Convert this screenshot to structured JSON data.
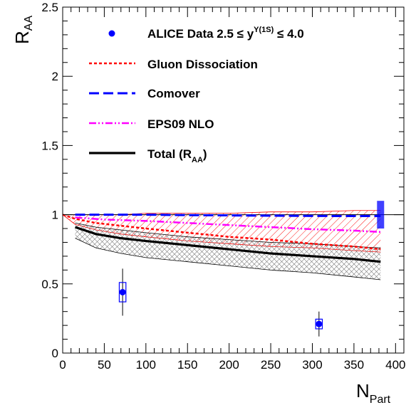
{
  "chart_data": {
    "type": "line",
    "xlabel": {
      "main": "N",
      "sub": "Part"
    },
    "ylabel": {
      "main": "R",
      "sub": "AA"
    },
    "xlim": [
      0,
      410
    ],
    "ylim": [
      0,
      2.5
    ],
    "xticks": [
      0,
      50,
      100,
      150,
      200,
      250,
      300,
      350,
      400
    ],
    "yticks": [
      0,
      0.5,
      1,
      1.5,
      2,
      2.5
    ],
    "ytick_labels": [
      "0",
      "0.5",
      "1",
      "1.5",
      "2",
      "2.5"
    ],
    "grid": false,
    "legend_position": "top-left",
    "reference_line": {
      "y": 1.0,
      "color": "#000000"
    },
    "legend": [
      {
        "key": "alice",
        "text": "ALICE Data 2.5 ≤ y",
        "sup": "Υ(1S)",
        "text_after": " ≤ 4.0",
        "color": "#0000ff",
        "style": "marker"
      },
      {
        "key": "gluon",
        "text": "Gluon Dissociation",
        "color": "#ff0000",
        "style": "dashed"
      },
      {
        "key": "comover",
        "text": "Comover",
        "color": "#0000ff",
        "style": "longdash"
      },
      {
        "key": "eps09",
        "text": "EPS09 NLO",
        "color": "#ff00ff",
        "style": "dashdotdot"
      },
      {
        "key": "total",
        "text": "Total (R",
        "sub": "AA",
        "text_after": ")",
        "color": "#000000",
        "style": "solid"
      }
    ],
    "data_points": {
      "name": "ALICE Data 2.5 ≤ y ≤ 4.0",
      "color": "#0000ff",
      "x": [
        72,
        308
      ],
      "y": [
        0.44,
        0.21
      ],
      "stat_err": [
        0.17,
        0.09
      ],
      "syst_err": [
        0.07,
        0.035
      ],
      "syst_width": [
        4,
        4
      ]
    },
    "global_uncertainty": {
      "x": 382,
      "y_low": 0.9,
      "y_high": 1.1,
      "color": "#0000ff"
    },
    "series": [
      {
        "key": "total",
        "color": "#000000",
        "dash": "",
        "width": 3.2,
        "x": [
          15,
          40,
          70,
          100,
          150,
          200,
          250,
          300,
          350,
          382
        ],
        "y": [
          0.91,
          0.86,
          0.83,
          0.81,
          0.78,
          0.75,
          0.72,
          0.7,
          0.68,
          0.66
        ]
      },
      {
        "key": "gluon",
        "color": "#ff0000",
        "dash": "4 3",
        "width": 2.5,
        "x": [
          0,
          15,
          40,
          70,
          100,
          150,
          200,
          250,
          300,
          350,
          382
        ],
        "y": [
          1.0,
          0.97,
          0.94,
          0.92,
          0.9,
          0.87,
          0.84,
          0.82,
          0.79,
          0.77,
          0.75
        ]
      },
      {
        "key": "comover",
        "color": "#0000ff",
        "dash": "14 6",
        "width": 3,
        "x": [
          15,
          50,
          100,
          150,
          200,
          250,
          300,
          350,
          382
        ],
        "y": [
          1.0,
          1.0,
          1.0,
          0.997,
          0.995,
          0.993,
          0.991,
          0.99,
          0.99
        ]
      },
      {
        "key": "eps09",
        "color": "#ff00ff",
        "dash": "10 3 2 3 2 3",
        "width": 2.5,
        "x": [
          15,
          50,
          100,
          150,
          200,
          250,
          300,
          350,
          382
        ],
        "y": [
          0.98,
          0.965,
          0.955,
          0.94,
          0.925,
          0.91,
          0.895,
          0.885,
          0.875
        ]
      }
    ],
    "bands": [
      {
        "key": "gluon-band",
        "color": "#ff0000",
        "pattern": "hatch",
        "x": [
          0,
          15,
          40,
          70,
          100,
          150,
          200,
          250,
          300,
          350,
          382
        ],
        "upper": [
          1.0,
          1.0,
          1.0,
          1.0,
          1.01,
          1.01,
          1.01,
          1.02,
          1.02,
          1.03,
          1.03
        ],
        "lower": [
          1.0,
          0.93,
          0.89,
          0.86,
          0.84,
          0.81,
          0.79,
          0.77,
          0.76,
          0.74,
          0.73
        ]
      },
      {
        "key": "total-band",
        "color": "#000000",
        "pattern": "crosshatch",
        "x": [
          15,
          40,
          70,
          100,
          150,
          200,
          250,
          300,
          350,
          382
        ],
        "upper": [
          0.94,
          0.91,
          0.89,
          0.87,
          0.84,
          0.82,
          0.8,
          0.79,
          0.77,
          0.76
        ],
        "lower": [
          0.83,
          0.76,
          0.72,
          0.69,
          0.66,
          0.63,
          0.6,
          0.58,
          0.55,
          0.53
        ]
      }
    ]
  }
}
